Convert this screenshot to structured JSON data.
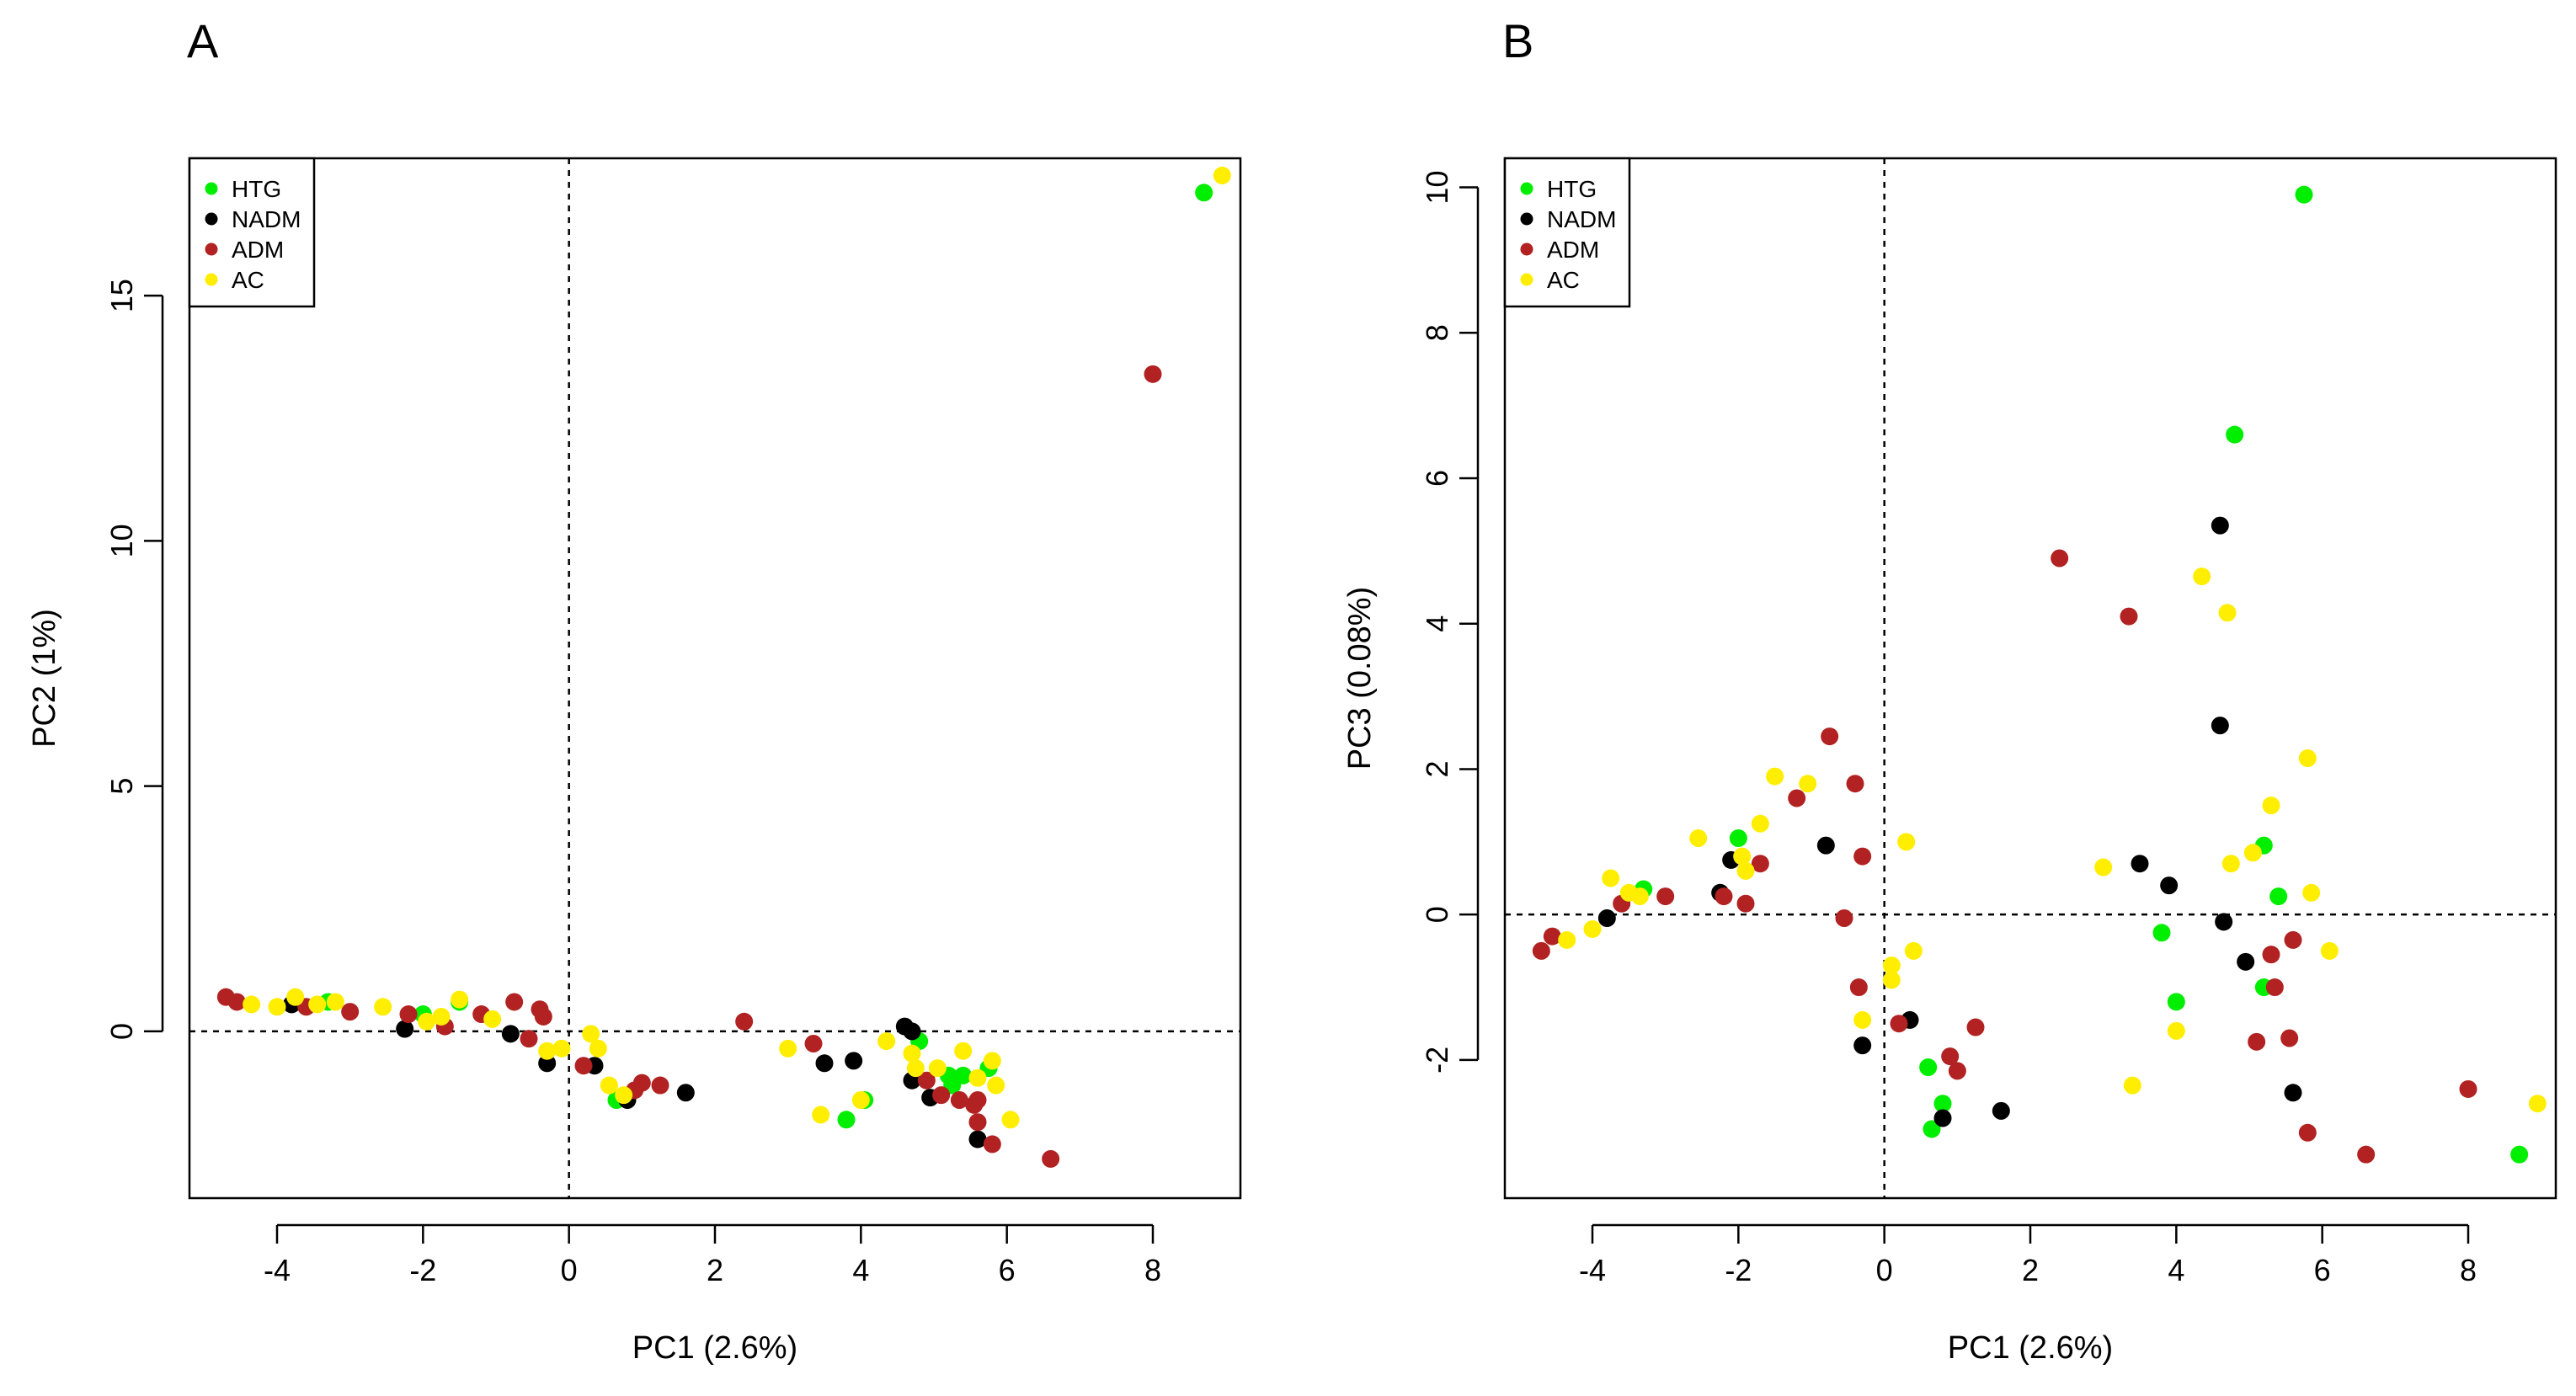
{
  "chart_data": [
    {
      "type": "scatter",
      "panel": "A",
      "xlabel": "PC1 (2.6%)",
      "ylabel": "PC2 (1%)",
      "xlim": [
        -5.2,
        9.2
      ],
      "ylim": [
        -3.4,
        17.8
      ],
      "xticks": [
        -4,
        -2,
        0,
        2,
        4,
        6,
        8
      ],
      "yticks": [
        0,
        5,
        10,
        15
      ],
      "refline_x": 0,
      "refline_y": 0,
      "legend_position": "top-left",
      "series": [
        {
          "name": "HTG",
          "color": "#00ee00",
          "points": [
            [
              -2.0,
              0.35
            ],
            [
              -1.5,
              0.6
            ],
            [
              -3.3,
              0.6
            ],
            [
              0.65,
              -1.4
            ],
            [
              3.8,
              -1.8
            ],
            [
              4.05,
              -1.4
            ],
            [
              4.8,
              -0.2
            ],
            [
              5.2,
              -0.9
            ],
            [
              5.4,
              -0.9
            ],
            [
              5.25,
              -1.1
            ],
            [
              5.75,
              -0.75
            ],
            [
              8.7,
              17.1
            ]
          ]
        },
        {
          "name": "NADM",
          "color": "#000000",
          "points": [
            [
              -3.8,
              0.55
            ],
            [
              -2.25,
              0.05
            ],
            [
              -0.8,
              -0.05
            ],
            [
              -0.3,
              -0.65
            ],
            [
              0.35,
              -0.7
            ],
            [
              0.8,
              -1.4
            ],
            [
              1.6,
              -1.25
            ],
            [
              3.5,
              -0.65
            ],
            [
              3.9,
              -0.6
            ],
            [
              4.6,
              0.1
            ],
            [
              4.7,
              0.0
            ],
            [
              4.7,
              -1.0
            ],
            [
              4.95,
              -1.35
            ],
            [
              5.6,
              -2.2
            ]
          ]
        },
        {
          "name": "ADM",
          "color": "#b22222",
          "points": [
            [
              -4.7,
              0.7
            ],
            [
              -4.55,
              0.6
            ],
            [
              -3.6,
              0.5
            ],
            [
              -3.0,
              0.4
            ],
            [
              -2.2,
              0.35
            ],
            [
              -1.7,
              0.1
            ],
            [
              -1.2,
              0.35
            ],
            [
              -0.75,
              0.6
            ],
            [
              -0.55,
              -0.15
            ],
            [
              -0.4,
              0.45
            ],
            [
              -0.35,
              0.3
            ],
            [
              0.2,
              -0.7
            ],
            [
              0.9,
              -1.2
            ],
            [
              1.0,
              -1.05
            ],
            [
              1.25,
              -1.1
            ],
            [
              2.4,
              0.2
            ],
            [
              3.35,
              -0.25
            ],
            [
              4.9,
              -1.0
            ],
            [
              5.1,
              -1.3
            ],
            [
              5.35,
              -1.4
            ],
            [
              5.55,
              -1.5
            ],
            [
              5.6,
              -1.4
            ],
            [
              5.6,
              -1.85
            ],
            [
              5.8,
              -2.3
            ],
            [
              6.6,
              -2.6
            ],
            [
              8.0,
              13.4
            ]
          ]
        },
        {
          "name": "AC",
          "color": "#ffee00",
          "points": [
            [
              -4.35,
              0.55
            ],
            [
              -4.0,
              0.5
            ],
            [
              -3.75,
              0.7
            ],
            [
              -3.45,
              0.55
            ],
            [
              -3.2,
              0.6
            ],
            [
              -2.55,
              0.5
            ],
            [
              -1.95,
              0.2
            ],
            [
              -1.75,
              0.3
            ],
            [
              -1.5,
              0.65
            ],
            [
              -1.05,
              0.25
            ],
            [
              -0.3,
              -0.4
            ],
            [
              -0.1,
              -0.35
            ],
            [
              0.3,
              -0.05
            ],
            [
              0.4,
              -0.35
            ],
            [
              0.55,
              -1.1
            ],
            [
              0.75,
              -1.3
            ],
            [
              3.0,
              -0.35
            ],
            [
              3.45,
              -1.7
            ],
            [
              4.0,
              -1.4
            ],
            [
              4.35,
              -0.2
            ],
            [
              4.7,
              -0.45
            ],
            [
              4.75,
              -0.75
            ],
            [
              5.05,
              -0.75
            ],
            [
              5.4,
              -0.4
            ],
            [
              5.6,
              -0.95
            ],
            [
              5.8,
              -0.6
            ],
            [
              5.85,
              -1.1
            ],
            [
              6.05,
              -1.8
            ],
            [
              8.95,
              17.45
            ]
          ]
        }
      ]
    },
    {
      "type": "scatter",
      "panel": "B",
      "xlabel": "PC1 (2.6%)",
      "ylabel": "PC3 (0.08%)",
      "xlim": [
        -5.2,
        9.2
      ],
      "ylim": [
        -3.9,
        10.4
      ],
      "xticks": [
        -4,
        -2,
        0,
        2,
        4,
        6,
        8
      ],
      "yticks": [
        -2,
        0,
        2,
        4,
        6,
        8,
        10
      ],
      "refline_x": 0,
      "refline_y": 0,
      "legend_position": "top-left",
      "series": [
        {
          "name": "HTG",
          "color": "#00ee00",
          "points": [
            [
              -3.3,
              0.35
            ],
            [
              -2.0,
              1.05
            ],
            [
              0.6,
              -2.1
            ],
            [
              0.65,
              -2.95
            ],
            [
              0.8,
              -2.6
            ],
            [
              3.8,
              -0.25
            ],
            [
              4.0,
              -1.2
            ],
            [
              4.8,
              6.6
            ],
            [
              5.2,
              0.95
            ],
            [
              5.2,
              -1.0
            ],
            [
              5.4,
              0.25
            ],
            [
              5.75,
              9.9
            ],
            [
              8.7,
              -3.3
            ]
          ]
        },
        {
          "name": "NADM",
          "color": "#000000",
          "points": [
            [
              -3.8,
              -0.05
            ],
            [
              -2.25,
              0.3
            ],
            [
              -2.1,
              0.75
            ],
            [
              -0.8,
              0.95
            ],
            [
              -0.3,
              -1.8
            ],
            [
              0.35,
              -1.45
            ],
            [
              0.8,
              -2.8
            ],
            [
              1.6,
              -2.7
            ],
            [
              3.5,
              0.7
            ],
            [
              3.9,
              0.4
            ],
            [
              4.6,
              5.35
            ],
            [
              4.6,
              2.6
            ],
            [
              4.65,
              -0.1
            ],
            [
              4.95,
              -0.65
            ],
            [
              5.6,
              -2.45
            ]
          ]
        },
        {
          "name": "ADM",
          "color": "#b22222",
          "points": [
            [
              -4.7,
              -0.5
            ],
            [
              -4.55,
              -0.3
            ],
            [
              -3.6,
              0.15
            ],
            [
              -3.0,
              0.25
            ],
            [
              -2.2,
              0.25
            ],
            [
              -1.9,
              0.15
            ],
            [
              -1.7,
              0.7
            ],
            [
              -1.2,
              1.6
            ],
            [
              -0.75,
              2.45
            ],
            [
              -0.55,
              -0.05
            ],
            [
              -0.4,
              1.8
            ],
            [
              -0.3,
              0.8
            ],
            [
              -0.35,
              -1.0
            ],
            [
              0.2,
              -1.5
            ],
            [
              0.9,
              -1.95
            ],
            [
              1.0,
              -2.15
            ],
            [
              1.25,
              -1.55
            ],
            [
              2.4,
              4.9
            ],
            [
              3.35,
              4.1
            ],
            [
              5.1,
              -1.75
            ],
            [
              5.3,
              -0.55
            ],
            [
              5.35,
              -1.0
            ],
            [
              5.55,
              -1.7
            ],
            [
              5.6,
              -0.35
            ],
            [
              5.8,
              -3.0
            ],
            [
              6.6,
              -3.3
            ],
            [
              8.0,
              -2.4
            ]
          ]
        },
        {
          "name": "AC",
          "color": "#ffee00",
          "points": [
            [
              -4.35,
              -0.35
            ],
            [
              -4.0,
              -0.2
            ],
            [
              -3.75,
              0.5
            ],
            [
              -3.5,
              0.3
            ],
            [
              -3.35,
              0.25
            ],
            [
              -2.55,
              1.05
            ],
            [
              -1.95,
              0.8
            ],
            [
              -1.9,
              0.6
            ],
            [
              -1.7,
              1.25
            ],
            [
              -1.5,
              1.9
            ],
            [
              -1.05,
              1.8
            ],
            [
              -0.3,
              -1.45
            ],
            [
              0.1,
              -0.7
            ],
            [
              0.1,
              -0.9
            ],
            [
              0.3,
              1.0
            ],
            [
              0.4,
              -0.5
            ],
            [
              3.0,
              0.65
            ],
            [
              3.4,
              -2.35
            ],
            [
              4.0,
              -1.6
            ],
            [
              4.35,
              4.65
            ],
            [
              4.7,
              4.15
            ],
            [
              4.75,
              0.7
            ],
            [
              5.05,
              0.85
            ],
            [
              5.3,
              1.5
            ],
            [
              5.8,
              2.15
            ],
            [
              5.85,
              0.3
            ],
            [
              6.1,
              -0.5
            ],
            [
              8.95,
              -2.6
            ]
          ]
        }
      ]
    }
  ]
}
